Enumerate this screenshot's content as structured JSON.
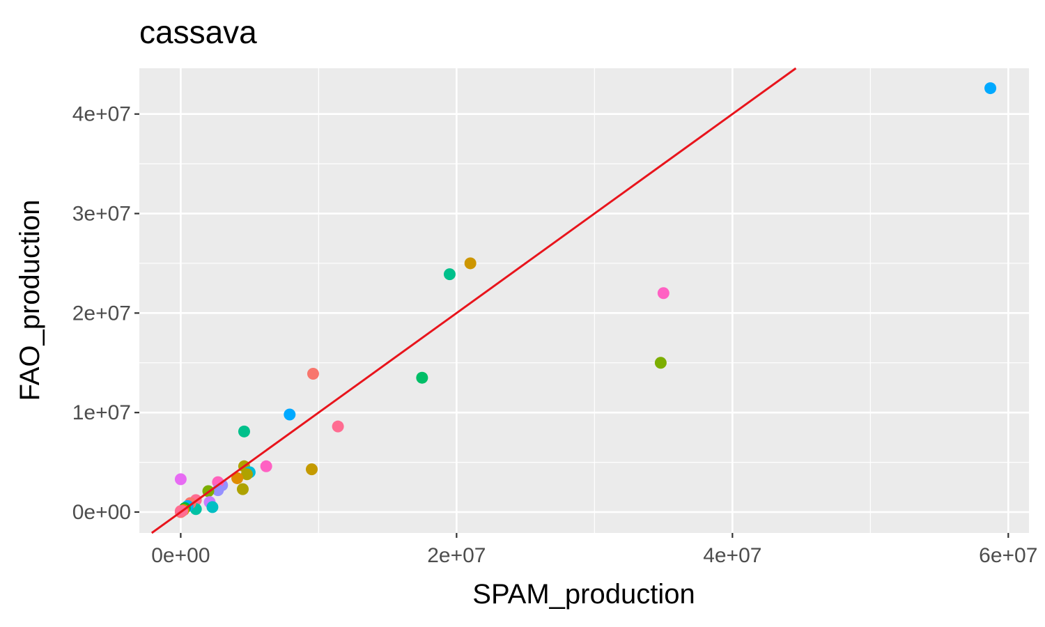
{
  "chart_data": {
    "type": "scatter",
    "title": "cassava",
    "xlabel": "SPAM_production",
    "ylabel": "FAO_production",
    "xlim": [
      -3000000,
      61500000
    ],
    "ylim": [
      -2100000,
      44600000
    ],
    "x_ticks": [
      {
        "value": 0,
        "label": "0e+00"
      },
      {
        "value": 20000000,
        "label": "2e+07"
      },
      {
        "value": 40000000,
        "label": "4e+07"
      },
      {
        "value": 60000000,
        "label": "6e+07"
      }
    ],
    "y_ticks": [
      {
        "value": 0,
        "label": "0e+00"
      },
      {
        "value": 10000000,
        "label": "1e+07"
      },
      {
        "value": 20000000,
        "label": "2e+07"
      },
      {
        "value": 30000000,
        "label": "3e+07"
      },
      {
        "value": 40000000,
        "label": "4e+07"
      }
    ],
    "x_minor_ticks": [
      10000000,
      30000000,
      50000000
    ],
    "y_minor_ticks": [
      5000000,
      15000000,
      25000000,
      35000000
    ],
    "grid": true,
    "legend": "none",
    "reference_line": {
      "slope": 1,
      "intercept": 0,
      "color": "#e8141c"
    },
    "panel_background": "#ebebeb",
    "grid_color": "#ffffff",
    "points": [
      {
        "x": 58700000,
        "y": 42600000,
        "color": "#00a9ff"
      },
      {
        "x": 21000000,
        "y": 25000000,
        "color": "#cd9600"
      },
      {
        "x": 19500000,
        "y": 23900000,
        "color": "#00c08b"
      },
      {
        "x": 35000000,
        "y": 22000000,
        "color": "#ff61c3"
      },
      {
        "x": 34800000,
        "y": 15000000,
        "color": "#7cae00"
      },
      {
        "x": 17500000,
        "y": 13500000,
        "color": "#00be67"
      },
      {
        "x": 9600000,
        "y": 13900000,
        "color": "#f8766d"
      },
      {
        "x": 11400000,
        "y": 8600000,
        "color": "#ff6c91"
      },
      {
        "x": 7900000,
        "y": 9800000,
        "color": "#00a9ff"
      },
      {
        "x": 4600000,
        "y": 8100000,
        "color": "#00c08b"
      },
      {
        "x": 6200000,
        "y": 4600000,
        "color": "#ff61c3"
      },
      {
        "x": 9500000,
        "y": 4300000,
        "color": "#c49a00"
      },
      {
        "x": 4600000,
        "y": 4600000,
        "color": "#aea200"
      },
      {
        "x": 5000000,
        "y": 4000000,
        "color": "#00bcd8"
      },
      {
        "x": 4800000,
        "y": 3800000,
        "color": "#aea200"
      },
      {
        "x": 4100000,
        "y": 3400000,
        "color": "#de8c00"
      },
      {
        "x": 4500000,
        "y": 2300000,
        "color": "#aea200"
      },
      {
        "x": 0,
        "y": 3300000,
        "color": "#e76bf3"
      },
      {
        "x": 3000000,
        "y": 2700000,
        "color": "#9590ff"
      },
      {
        "x": 2700000,
        "y": 3000000,
        "color": "#ff62bc"
      },
      {
        "x": 2700000,
        "y": 2200000,
        "color": "#9590ff"
      },
      {
        "x": 2000000,
        "y": 2100000,
        "color": "#7cae00"
      },
      {
        "x": 2100000,
        "y": 1000000,
        "color": "#c77cff"
      },
      {
        "x": 2300000,
        "y": 500000,
        "color": "#00bfc4"
      },
      {
        "x": 1100000,
        "y": 1200000,
        "color": "#ff6c91"
      },
      {
        "x": 1100000,
        "y": 300000,
        "color": "#00c1a3"
      },
      {
        "x": 700000,
        "y": 900000,
        "color": "#f8766d"
      },
      {
        "x": 500000,
        "y": 600000,
        "color": "#00b0f6"
      },
      {
        "x": 300000,
        "y": 400000,
        "color": "#00ba38"
      },
      {
        "x": 200000,
        "y": 200000,
        "color": "#e58700"
      },
      {
        "x": 100000,
        "y": 100000,
        "color": "#ff67a4"
      },
      {
        "x": 0,
        "y": 0,
        "color": "#f8766d"
      },
      {
        "x": 0,
        "y": 100000,
        "color": "#ff6c91"
      }
    ]
  }
}
